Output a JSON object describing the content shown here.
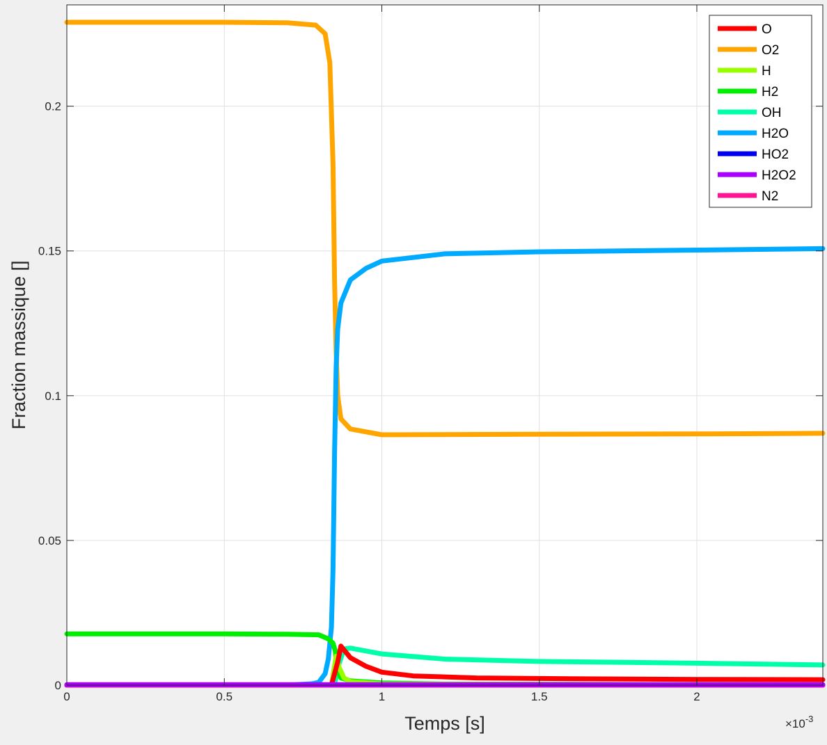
{
  "chart_data": {
    "type": "line",
    "xlabel": "Temps [s]",
    "ylabel": "Fraction massique []",
    "x_exponent_label": "×10",
    "x_exponent_power": "-3",
    "xlim": [
      0,
      2.4
    ],
    "ylim": [
      0,
      0.235
    ],
    "x_scale": 0.001,
    "xticks": [
      {
        "value": 0,
        "label": "0"
      },
      {
        "value": 0.5,
        "label": "0.5"
      },
      {
        "value": 1,
        "label": "1"
      },
      {
        "value": 1.5,
        "label": "1.5"
      },
      {
        "value": 2,
        "label": "2"
      }
    ],
    "yticks": [
      {
        "value": 0,
        "label": "0"
      },
      {
        "value": 0.05,
        "label": "0.05"
      },
      {
        "value": 0.1,
        "label": "0.1"
      },
      {
        "value": 0.15,
        "label": "0.15"
      },
      {
        "value": 0.2,
        "label": "0.2"
      }
    ],
    "grid": true,
    "legend_position": "top-right",
    "series": [
      {
        "name": "O",
        "color": "#ff0000",
        "x": [
          0,
          0.84,
          0.86,
          0.87,
          0.9,
          0.95,
          1.0,
          1.1,
          1.3,
          1.6,
          2.0,
          2.4
        ],
        "y": [
          0,
          0,
          0.008,
          0.0135,
          0.0095,
          0.0065,
          0.0045,
          0.0032,
          0.0025,
          0.0022,
          0.002,
          0.0019
        ]
      },
      {
        "name": "O2",
        "color": "#ffa500",
        "x": [
          0,
          0.5,
          0.7,
          0.79,
          0.82,
          0.835,
          0.845,
          0.85,
          0.855,
          0.86,
          0.87,
          0.9,
          1.0,
          1.5,
          2.0,
          2.4
        ],
        "y": [
          0.229,
          0.229,
          0.2288,
          0.228,
          0.225,
          0.215,
          0.18,
          0.14,
          0.115,
          0.1,
          0.092,
          0.0885,
          0.0865,
          0.0867,
          0.0868,
          0.087
        ]
      },
      {
        "name": "H",
        "color": "#99ff00",
        "x": [
          0,
          0.84,
          0.855,
          0.865,
          0.88,
          0.9,
          1.0,
          2.4
        ],
        "y": [
          0,
          0,
          0.01,
          0.006,
          0.0025,
          0.0012,
          0.0004,
          0.0001
        ]
      },
      {
        "name": "H2",
        "color": "#00ee00",
        "x": [
          0,
          0.5,
          0.7,
          0.8,
          0.83,
          0.845,
          0.852,
          0.86,
          0.87,
          0.9,
          1.0,
          1.2,
          2.4
        ],
        "y": [
          0.0177,
          0.0177,
          0.0176,
          0.0174,
          0.016,
          0.0145,
          0.012,
          0.005,
          0.0025,
          0.0015,
          0.0008,
          0.0004,
          0.0001
        ]
      },
      {
        "name": "OH",
        "color": "#00ffaa",
        "x": [
          0,
          0.85,
          0.86,
          0.88,
          0.9,
          0.95,
          1.0,
          1.2,
          1.5,
          2.0,
          2.4
        ],
        "y": [
          0,
          0,
          0.006,
          0.0125,
          0.0128,
          0.0118,
          0.0108,
          0.009,
          0.0082,
          0.0076,
          0.007
        ]
      },
      {
        "name": "H2O",
        "color": "#00aaff",
        "x": [
          0,
          0.7,
          0.78,
          0.8,
          0.82,
          0.83,
          0.84,
          0.845,
          0.85,
          0.855,
          0.86,
          0.87,
          0.9,
          0.95,
          1.0,
          1.2,
          1.5,
          2.0,
          2.4
        ],
        "y": [
          0,
          0,
          0.0005,
          0.001,
          0.004,
          0.009,
          0.02,
          0.04,
          0.08,
          0.11,
          0.123,
          0.132,
          0.14,
          0.144,
          0.1465,
          0.149,
          0.1497,
          0.1503,
          0.1508
        ]
      },
      {
        "name": "HO2",
        "color": "#0000ee",
        "x": [
          0,
          2.4
        ],
        "y": [
          0,
          0
        ]
      },
      {
        "name": "H2O2",
        "color": "#aa00ff",
        "x": [
          0,
          2.4
        ],
        "y": [
          0.0002,
          0.0002
        ]
      },
      {
        "name": "N2",
        "color": "#ff1493",
        "x": [
          0,
          2.4
        ],
        "y": [
          0,
          0
        ]
      }
    ]
  }
}
